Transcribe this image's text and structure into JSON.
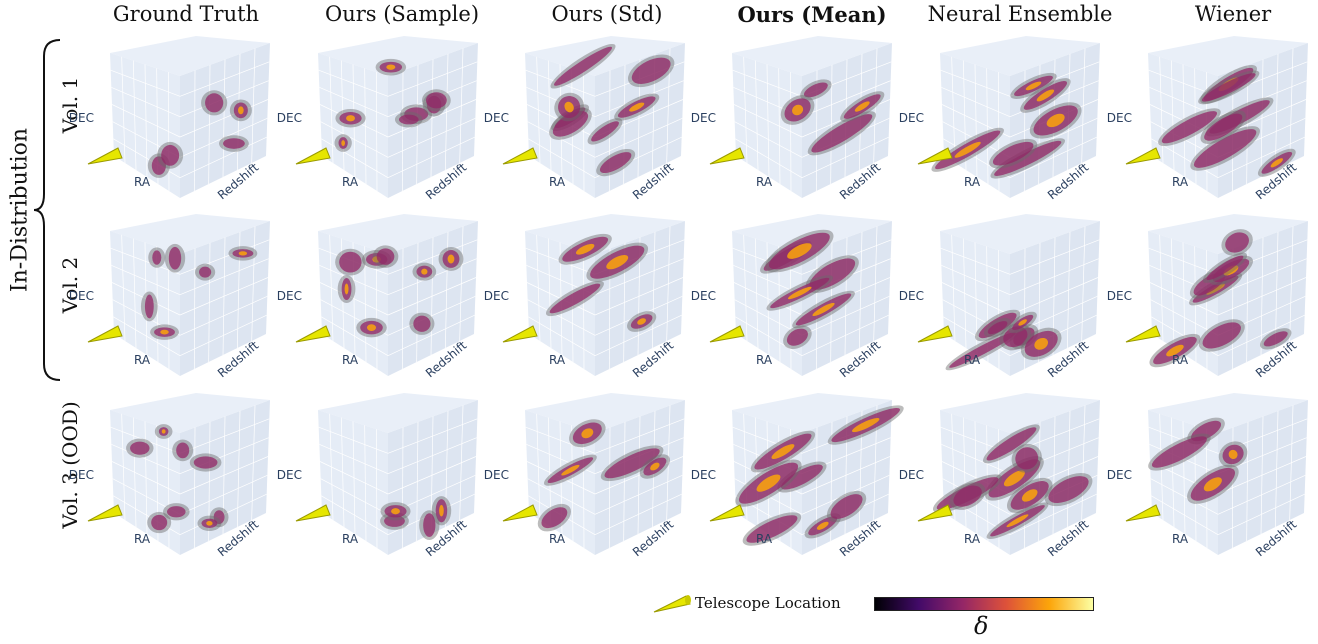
{
  "columns": [
    "Ground Truth",
    "Ours (Sample)",
    "Ours (Std)",
    "Ours (Mean)",
    "Neural Ensemble",
    "Wiener"
  ],
  "bold_column": "Ours (Mean)",
  "rows": [
    "Vol. 1",
    "Vol. 2",
    "Vol. 3 (OOD)"
  ],
  "group_label": "In-Distribution",
  "axis_labels": {
    "dec": "DEC",
    "ra": "RA",
    "z": "Redshift"
  },
  "legend": {
    "telescope": "Telescope Location",
    "colorbar_symbol": "δ"
  },
  "colors": {
    "scene_bg": "#e5ecf6",
    "grid": "#ffffff",
    "cone": "#e6e600",
    "blob_shadow": "#6b6b6b",
    "colormap": [
      "#000004",
      "#420a68",
      "#932667",
      "#dd513a",
      "#fca50a",
      "#fcffa4"
    ]
  }
}
